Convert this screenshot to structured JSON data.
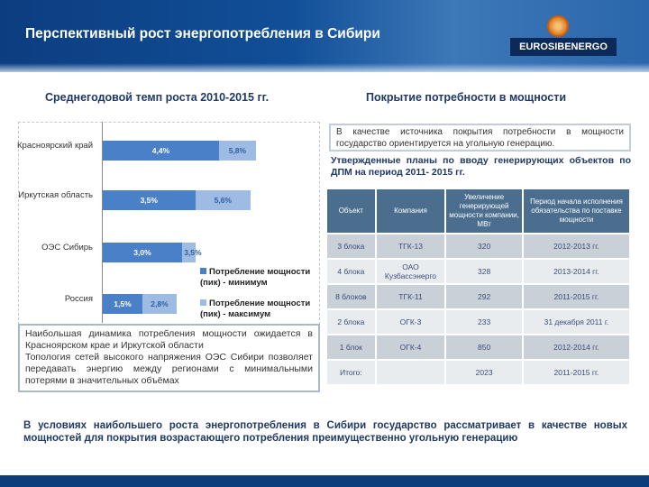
{
  "header": {
    "title": "Перспективный рост энергопотребления в Сибири",
    "logo_text": "EUROSIBENERGO"
  },
  "left": {
    "subtitle": "Среднегодовой темп роста 2010-2015 гг.",
    "note": [
      "Наибольшая динамика потребления мощности ожидается в Красноярском крае и Иркутской области",
      "Топология сетей высокого напряжения ОЭС Сибири позволяет передавать энергию между регионами с минимальными потерями в значительных объёмах"
    ]
  },
  "chart_data": {
    "type": "bar",
    "orientation": "horizontal",
    "stacked_overlay": true,
    "categories": [
      "Красноярский край",
      "Иркутская область",
      "ОЭС Сибирь",
      "Россия"
    ],
    "series": [
      {
        "name": "Потребление мощности (пик) - минимум",
        "values": [
          4.4,
          3.5,
          3.0,
          1.5
        ],
        "labels": [
          "4,4%",
          "3,5%",
          "3,0%",
          "1,5%"
        ],
        "color": "#4a80c8"
      },
      {
        "name": "Потребление мощности (пик) - максимум",
        "values": [
          5.8,
          5.6,
          3.5,
          2.8
        ],
        "labels": [
          "5,8%",
          "5,6%",
          "3,5%",
          "2,8%"
        ],
        "color": "#9dbbe3"
      }
    ],
    "legend": "bottom-right",
    "unit": "%"
  },
  "right": {
    "subtitle": "Покрытие потребности в мощности",
    "intro": "В качестве источника покрытия потребности в мощности государство ориентируется на угольную генерацию.",
    "heading": "Утвержденные планы по вводу генерирующих объектов по ДПМ на период 2011- 2015 гг.",
    "table": {
      "headers": [
        "Объект",
        "Компания",
        "Увеличение генерирующей мощности компании, МВт",
        "Период начала исполнения обязательства по поставке мощности"
      ],
      "rows": [
        [
          "3 блока",
          "ТГК-13",
          "320",
          "2012-2013 гг."
        ],
        [
          "4 блока",
          "ОАО Кузбассэнерго",
          "328",
          "2013-2014 гг."
        ],
        [
          "8 блоков",
          "ТГК-11",
          "292",
          "2011-2015 гг."
        ],
        [
          "2 блока",
          "ОГК-3",
          "233",
          "31 декабря 2011 г."
        ],
        [
          "1 блок",
          "ОГК-4",
          "850",
          "2012-2014 гг."
        ],
        [
          "Итого:",
          "",
          "2023",
          "2011-2015 гг."
        ]
      ]
    }
  },
  "conclusion": "В условиях наибольшего роста энергопотребления в Сибири государство рассматривает в качестве новых мощностей для покрытия возрастающего потребления преимущественно угольную генерацию"
}
